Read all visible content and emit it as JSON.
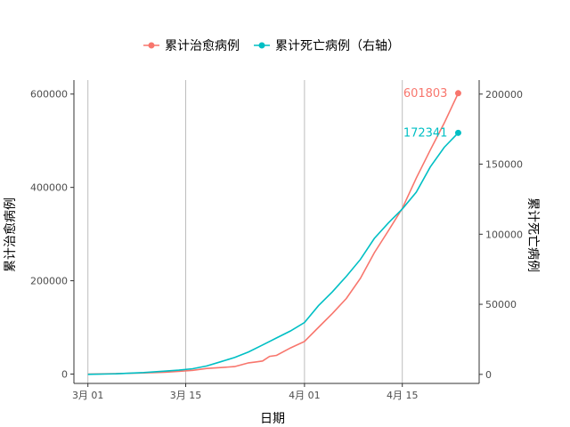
{
  "chart_data": {
    "type": "line",
    "title": "",
    "xlabel": "日期",
    "ylabel": "累计治愈病例",
    "y2label": "累计死亡病例",
    "legend_position": "top",
    "grid": "vertical major gridlines only",
    "x_ticks": [
      {
        "date": "2020-03-01",
        "label": "3月 01"
      },
      {
        "date": "2020-03-15",
        "label": "3月 15"
      },
      {
        "date": "2020-04-01",
        "label": "4月 01"
      },
      {
        "date": "2020-04-15",
        "label": "4月 15"
      }
    ],
    "xlim": [
      "2020-02-28",
      "2020-04-26"
    ],
    "ylim": [
      -20000,
      630000
    ],
    "y_ticks": [
      0,
      200000,
      400000,
      600000
    ],
    "y2lim": [
      -6450,
      210000
    ],
    "y2_ticks": [
      0,
      50000,
      100000,
      150000,
      200000
    ],
    "series": [
      {
        "name": "累计治愈病例",
        "axis": "left",
        "color": "#F8766D",
        "end_label": "601803",
        "points": [
          [
            "2020-03-01",
            0
          ],
          [
            "2020-03-05",
            1000
          ],
          [
            "2020-03-09",
            2500
          ],
          [
            "2020-03-12",
            4000
          ],
          [
            "2020-03-14",
            6000
          ],
          [
            "2020-03-16",
            8000
          ],
          [
            "2020-03-18",
            12000
          ],
          [
            "2020-03-20",
            14000
          ],
          [
            "2020-03-22",
            16000
          ],
          [
            "2020-03-23",
            20000
          ],
          [
            "2020-03-24",
            24000
          ],
          [
            "2020-03-25",
            26000
          ],
          [
            "2020-03-26",
            28000
          ],
          [
            "2020-03-27",
            38000
          ],
          [
            "2020-03-28",
            40000
          ],
          [
            "2020-03-30",
            56000
          ],
          [
            "2020-04-01",
            70000
          ],
          [
            "2020-04-03",
            100000
          ],
          [
            "2020-04-05",
            130000
          ],
          [
            "2020-04-07",
            162000
          ],
          [
            "2020-04-09",
            205000
          ],
          [
            "2020-04-11",
            260000
          ],
          [
            "2020-04-13",
            307000
          ],
          [
            "2020-04-15",
            355000
          ],
          [
            "2020-04-17",
            420000
          ],
          [
            "2020-04-19",
            480000
          ],
          [
            "2020-04-21",
            538000
          ],
          [
            "2020-04-23",
            601803
          ]
        ]
      },
      {
        "name": "累计死亡病例（右轴）",
        "axis": "right",
        "color": "#00BFC4",
        "end_label": "172341",
        "points": [
          [
            "2020-03-01",
            0
          ],
          [
            "2020-03-05",
            400
          ],
          [
            "2020-03-09",
            1300
          ],
          [
            "2020-03-12",
            2300
          ],
          [
            "2020-03-14",
            3000
          ],
          [
            "2020-03-16",
            4000
          ],
          [
            "2020-03-18",
            6000
          ],
          [
            "2020-03-20",
            9000
          ],
          [
            "2020-03-22",
            12000
          ],
          [
            "2020-03-24",
            16000
          ],
          [
            "2020-03-26",
            21000
          ],
          [
            "2020-03-28",
            26000
          ],
          [
            "2020-03-30",
            31000
          ],
          [
            "2020-04-01",
            37000
          ],
          [
            "2020-04-03",
            49000
          ],
          [
            "2020-04-05",
            59000
          ],
          [
            "2020-04-07",
            70000
          ],
          [
            "2020-04-09",
            82000
          ],
          [
            "2020-04-11",
            97000
          ],
          [
            "2020-04-13",
            108000
          ],
          [
            "2020-04-15",
            118000
          ],
          [
            "2020-04-17",
            130000
          ],
          [
            "2020-04-19",
            148000
          ],
          [
            "2020-04-21",
            162000
          ],
          [
            "2020-04-23",
            172341
          ]
        ]
      }
    ]
  }
}
